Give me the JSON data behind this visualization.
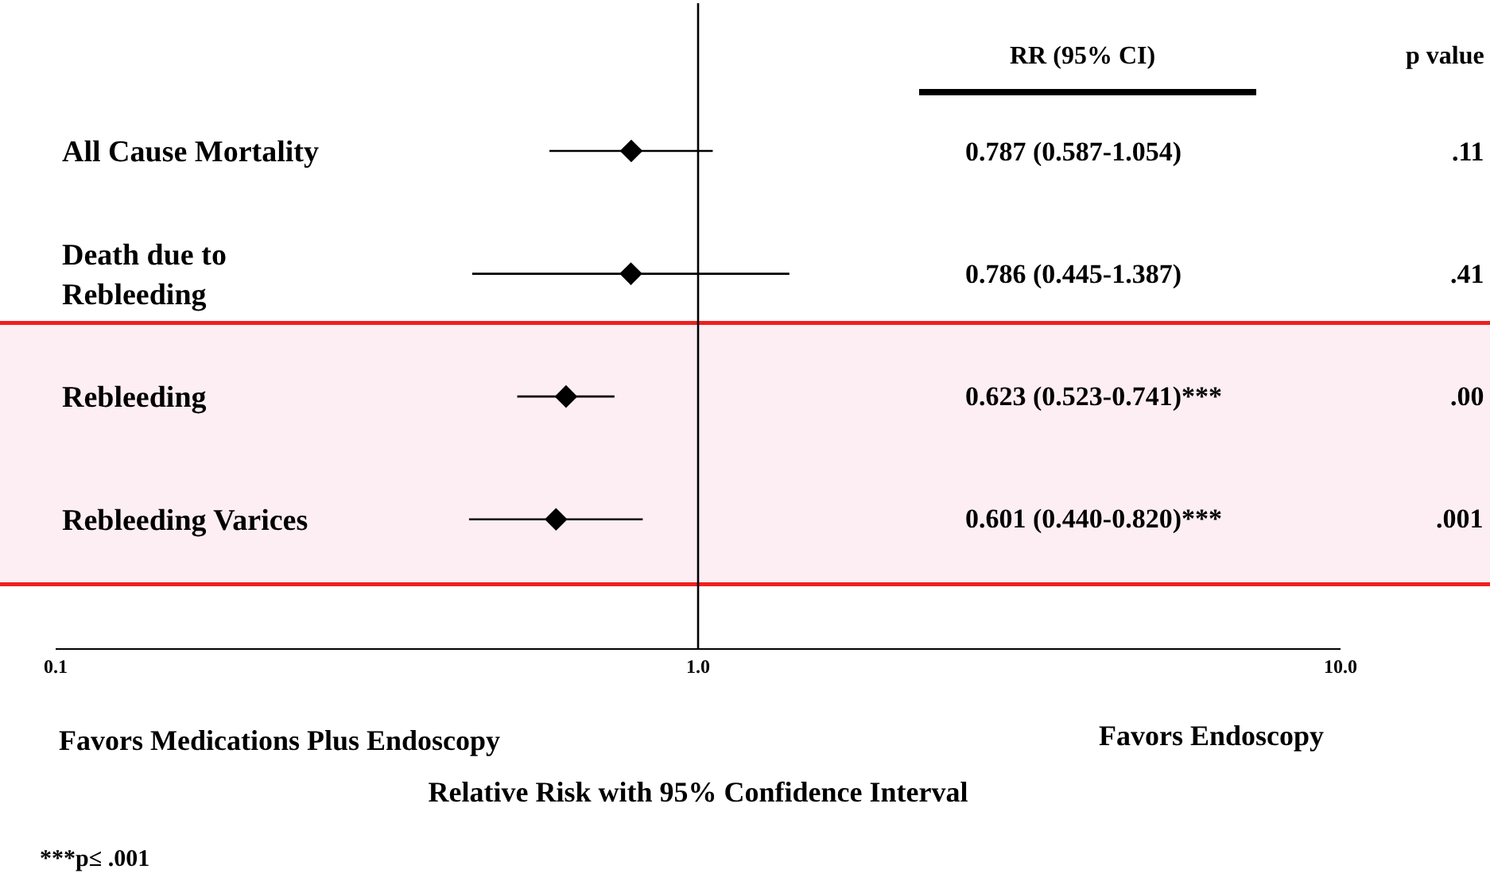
{
  "chart_data": {
    "type": "scatter",
    "orientation": "horizontal",
    "log": "x",
    "categories": [
      "All Cause Mortality",
      "Death due to\nRebleeding",
      "Rebleeding",
      "Rebleeding Varices"
    ],
    "series": [
      {
        "color": "#000000",
        "values": [
          0.787,
          0.786,
          0.623,
          0.601
        ],
        "errors": [
          [
            0.587,
            1.054
          ],
          [
            0.445,
            1.387
          ],
          [
            0.523,
            0.741
          ],
          [
            0.44,
            0.82
          ]
        ]
      }
    ],
    "marker": "diamond",
    "xlim": [
      0.1,
      10
    ],
    "xticks": [
      0.1,
      {
        "value": 1,
        "label": "1.0"
      },
      {
        "value": 10,
        "label": "10.0"
      }
    ],
    "xlabel": "Relative Risk with 95% Confidence Interval",
    "ref_lines": [
      {
        "axis": "x",
        "value": 1,
        "color": "#000000"
      }
    ],
    "bands": [
      {
        "axis": "y",
        "from": "Rebleeding",
        "to": "Rebleeding Varices",
        "color": "#fdeef3"
      }
    ],
    "annotations": [
      "RR (95% CI)",
      "p value",
      "Favors Medications Plus Endoscopy",
      "Favors Endoscopy",
      "***p≤ .001",
      "0.787 (0.587-1.054)",
      ".11",
      "0.786 (0.445-1.387)",
      ".41",
      "0.623 (0.523-0.741)***",
      ".00",
      "0.601 (0.440-0.820)***",
      ".001"
    ]
  }
}
